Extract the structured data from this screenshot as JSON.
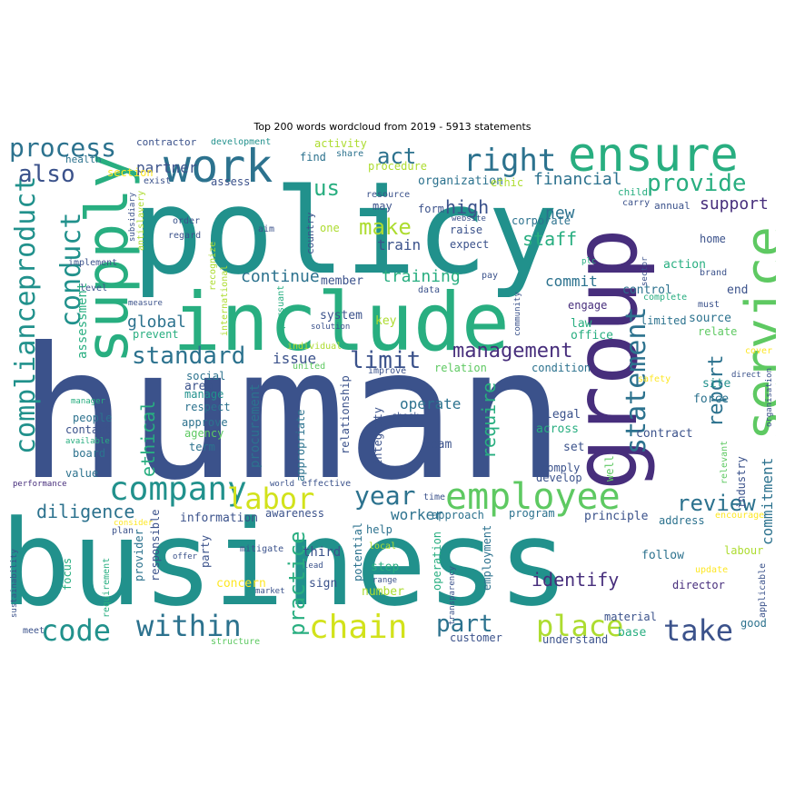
{
  "title": "Top 200 words wordcloud from 2019 - 5913 statements",
  "palette": [
    "#440154",
    "#472e7c",
    "#3b528b",
    "#2c728e",
    "#21918c",
    "#28ae80",
    "#5ec962",
    "#addc30",
    "#fde725"
  ],
  "words": [
    {
      "text": "human",
      "color": "#3b528b"
    },
    {
      "text": "business",
      "color": "#21918c"
    },
    {
      "text": "policy",
      "color": "#21918c"
    },
    {
      "text": "include",
      "color": "#28ae80"
    },
    {
      "text": "group",
      "color": "#472e7c"
    },
    {
      "text": "service",
      "color": "#5ec962"
    },
    {
      "text": "supply",
      "color": "#28ae80"
    },
    {
      "text": "ensure",
      "color": "#28ae80"
    },
    {
      "text": "work",
      "color": "#2c728e"
    },
    {
      "text": "employee",
      "color": "#5ec962"
    },
    {
      "text": "company",
      "color": "#21918c"
    },
    {
      "text": "compliance",
      "color": "#21918c"
    },
    {
      "text": "product",
      "color": "#21918c"
    },
    {
      "text": "chain",
      "color": "#d2e21b"
    },
    {
      "text": "labor",
      "color": "#d2e21b"
    },
    {
      "text": "code",
      "color": "#21918c"
    },
    {
      "text": "within",
      "color": "#2c728e"
    },
    {
      "text": "take",
      "color": "#3b528b"
    },
    {
      "text": "statement",
      "color": "#2c728e"
    },
    {
      "text": "conduct",
      "color": "#21918c"
    },
    {
      "text": "process",
      "color": "#2c728e"
    },
    {
      "text": "right",
      "color": "#2c728e"
    },
    {
      "text": "practice",
      "color": "#28ae80"
    },
    {
      "text": "place",
      "color": "#addc30"
    },
    {
      "text": "part",
      "color": "#2c728e"
    },
    {
      "text": "year",
      "color": "#2c728e"
    },
    {
      "text": "also",
      "color": "#3b528b"
    },
    {
      "text": "provide",
      "color": "#28ae80"
    },
    {
      "text": "standard",
      "color": "#2c728e"
    },
    {
      "text": "management",
      "color": "#472e7c"
    },
    {
      "text": "review",
      "color": "#2c728e"
    },
    {
      "text": "report",
      "color": "#2c728e"
    },
    {
      "text": "act",
      "color": "#2c728e"
    },
    {
      "text": "us",
      "color": "#28ae80"
    },
    {
      "text": "make",
      "color": "#addc30"
    },
    {
      "text": "limit",
      "color": "#3b528b"
    },
    {
      "text": "ethical",
      "color": "#28ae80"
    },
    {
      "text": "require",
      "color": "#28ae80"
    },
    {
      "text": "commitment",
      "color": "#2c728e"
    },
    {
      "text": "diligence",
      "color": "#2c728e"
    },
    {
      "text": "identify",
      "color": "#472e7c"
    },
    {
      "text": "financial",
      "color": "#2c728e"
    },
    {
      "text": "staff",
      "color": "#28ae80"
    },
    {
      "text": "high",
      "color": "#3b528b"
    },
    {
      "text": "new",
      "color": "#2c728e"
    },
    {
      "text": "support",
      "color": "#472e7c"
    },
    {
      "text": "training",
      "color": "#28ae80"
    },
    {
      "text": "continue",
      "color": "#2c728e"
    },
    {
      "text": "global",
      "color": "#2c728e"
    },
    {
      "text": "commit",
      "color": "#2c728e"
    },
    {
      "text": "operate",
      "color": "#2c728e"
    },
    {
      "text": "worker",
      "color": "#2c728e"
    },
    {
      "text": "issue",
      "color": "#3b528b"
    },
    {
      "text": "assessment",
      "color": "#28ae80"
    },
    {
      "text": "partner",
      "color": "#3b528b"
    },
    {
      "text": "procurement",
      "color": "#2c728e"
    },
    {
      "text": "train",
      "color": "#3b528b"
    },
    {
      "text": "action",
      "color": "#28ae80"
    },
    {
      "text": "control",
      "color": "#2c728e"
    },
    {
      "text": "end",
      "color": "#3b528b"
    },
    {
      "text": "source",
      "color": "#2c728e"
    },
    {
      "text": "force",
      "color": "#2c728e"
    },
    {
      "text": "site",
      "color": "#21918c"
    },
    {
      "text": "relate",
      "color": "#5ec962"
    },
    {
      "text": "limited",
      "color": "#2c728e"
    },
    {
      "text": "law",
      "color": "#28ae80"
    },
    {
      "text": "office",
      "color": "#28ae80"
    },
    {
      "text": "engage",
      "color": "#472e7c"
    },
    {
      "text": "system",
      "color": "#3b528b"
    },
    {
      "text": "key",
      "color": "#addc30"
    },
    {
      "text": "member",
      "color": "#3b528b"
    },
    {
      "text": "prevent",
      "color": "#28ae80"
    },
    {
      "text": "area",
      "color": "#3b528b"
    },
    {
      "text": "manage",
      "color": "#21918c"
    },
    {
      "text": "respect",
      "color": "#2c728e"
    },
    {
      "text": "approve",
      "color": "#2c728e"
    },
    {
      "text": "agency",
      "color": "#5ec962"
    },
    {
      "text": "term",
      "color": "#2c728e"
    },
    {
      "text": "people",
      "color": "#2c728e"
    },
    {
      "text": "contact",
      "color": "#3b528b"
    },
    {
      "text": "board",
      "color": "#2c728e"
    },
    {
      "text": "value",
      "color": "#2c728e"
    },
    {
      "text": "social",
      "color": "#2c728e"
    },
    {
      "text": "condition",
      "color": "#2c728e"
    },
    {
      "text": "relation",
      "color": "#5ec962"
    },
    {
      "text": "legal",
      "color": "#3b528b"
    },
    {
      "text": "across",
      "color": "#28ae80"
    },
    {
      "text": "set",
      "color": "#3b528b"
    },
    {
      "text": "comply",
      "color": "#3b528b"
    },
    {
      "text": "develop",
      "color": "#3b528b"
    },
    {
      "text": "contract",
      "color": "#3b528b"
    },
    {
      "text": "team",
      "color": "#3b528b"
    },
    {
      "text": "principle",
      "color": "#3b528b"
    },
    {
      "text": "address",
      "color": "#2c728e"
    },
    {
      "text": "program",
      "color": "#2c728e"
    },
    {
      "text": "approach",
      "color": "#2c728e"
    },
    {
      "text": "information",
      "color": "#3b528b"
    },
    {
      "text": "awareness",
      "color": "#3b528b"
    },
    {
      "text": "help",
      "color": "#2c728e"
    },
    {
      "text": "follow",
      "color": "#2c728e"
    },
    {
      "text": "director",
      "color": "#472e7c"
    },
    {
      "text": "labour",
      "color": "#addc30"
    },
    {
      "text": "third",
      "color": "#3b528b"
    },
    {
      "text": "step",
      "color": "#28ae80"
    },
    {
      "text": "number",
      "color": "#addc30"
    },
    {
      "text": "sign",
      "color": "#3b528b"
    },
    {
      "text": "concern",
      "color": "#fde725"
    },
    {
      "text": "party",
      "color": "#3b528b"
    },
    {
      "text": "focus",
      "color": "#28ae80"
    },
    {
      "text": "provider",
      "color": "#2c728e"
    },
    {
      "text": "responsible",
      "color": "#3b528b"
    },
    {
      "text": "requirement",
      "color": "#28ae80"
    },
    {
      "text": "operation",
      "color": "#28ae80"
    },
    {
      "text": "employment",
      "color": "#2c728e"
    },
    {
      "text": "potential",
      "color": "#2c728e"
    },
    {
      "text": "customer",
      "color": "#3b528b"
    },
    {
      "text": "understand",
      "color": "#3b528b"
    },
    {
      "text": "material",
      "color": "#3b528b"
    },
    {
      "text": "base",
      "color": "#28ae80"
    },
    {
      "text": "good",
      "color": "#2c728e"
    },
    {
      "text": "industry",
      "color": "#3b528b"
    },
    {
      "text": "organization",
      "color": "#2c728e"
    },
    {
      "text": "corporate",
      "color": "#2c728e"
    },
    {
      "text": "procedure",
      "color": "#addc30"
    },
    {
      "text": "activity",
      "color": "#addc30"
    },
    {
      "text": "find",
      "color": "#2c728e"
    },
    {
      "text": "share",
      "color": "#2c728e"
    },
    {
      "text": "assess",
      "color": "#3b528b"
    },
    {
      "text": "section",
      "color": "#fde725"
    },
    {
      "text": "exist",
      "color": "#3b528b"
    },
    {
      "text": "health",
      "color": "#2c728e"
    },
    {
      "text": "contractor",
      "color": "#3b528b"
    },
    {
      "text": "development",
      "color": "#21918c"
    },
    {
      "text": "ethic",
      "color": "#addc30"
    },
    {
      "text": "child",
      "color": "#28ae80"
    },
    {
      "text": "carry",
      "color": "#3b528b"
    },
    {
      "text": "annual",
      "color": "#3b528b"
    },
    {
      "text": "resource",
      "color": "#3b528b"
    },
    {
      "text": "form",
      "color": "#3b528b"
    },
    {
      "text": "may",
      "color": "#3b528b"
    },
    {
      "text": "raise",
      "color": "#3b528b"
    },
    {
      "text": "expect",
      "color": "#3b528b"
    },
    {
      "text": "website",
      "color": "#3b528b"
    },
    {
      "text": "country",
      "color": "#3b528b"
    },
    {
      "text": "one",
      "color": "#addc30"
    },
    {
      "text": "home",
      "color": "#3b528b"
    },
    {
      "text": "brand",
      "color": "#3b528b"
    },
    {
      "text": "plc",
      "color": "#28ae80"
    },
    {
      "text": "complete",
      "color": "#28ae80"
    },
    {
      "text": "must",
      "color": "#3b528b"
    },
    {
      "text": "data",
      "color": "#3b528b"
    },
    {
      "text": "pay",
      "color": "#3b528b"
    },
    {
      "text": "community",
      "color": "#3b528b"
    },
    {
      "text": "pursuant",
      "color": "#28ae80"
    },
    {
      "text": "solution",
      "color": "#3b528b"
    },
    {
      "text": "individual",
      "color": "#addc30"
    },
    {
      "text": "united",
      "color": "#5ec962"
    },
    {
      "text": "improve",
      "color": "#3b528b"
    },
    {
      "text": "recognize",
      "color": "#addc30"
    },
    {
      "text": "international",
      "color": "#addc30"
    },
    {
      "text": "antislavery",
      "color": "#addc30"
    },
    {
      "text": "subsidiary",
      "color": "#3b528b"
    },
    {
      "text": "implement",
      "color": "#3b528b"
    },
    {
      "text": "level",
      "color": "#3b528b"
    },
    {
      "text": "measure",
      "color": "#3b528b"
    },
    {
      "text": "order",
      "color": "#3b528b"
    },
    {
      "text": "regard",
      "color": "#3b528b"
    },
    {
      "text": "aim",
      "color": "#3b528b"
    },
    {
      "text": "manager",
      "color": "#28ae80"
    },
    {
      "text": "available",
      "color": "#28ae80"
    },
    {
      "text": "performance",
      "color": "#472e7c"
    },
    {
      "text": "consider",
      "color": "#fde725"
    },
    {
      "text": "plan",
      "color": "#3b528b"
    },
    {
      "text": "world",
      "color": "#3b528b"
    },
    {
      "text": "effective",
      "color": "#3b528b"
    },
    {
      "text": "time",
      "color": "#3b528b"
    },
    {
      "text": "appropriate",
      "color": "#2c728e"
    },
    {
      "text": "relationship",
      "color": "#3b528b"
    },
    {
      "text": "integrity",
      "color": "#3b528b"
    },
    {
      "text": "check",
      "color": "#3b528b"
    },
    {
      "text": "well",
      "color": "#5ec962"
    },
    {
      "text": "relevant",
      "color": "#5ec962"
    },
    {
      "text": "safety",
      "color": "#fde725"
    },
    {
      "text": "direct",
      "color": "#3b528b"
    },
    {
      "text": "organisation",
      "color": "#3b528b"
    },
    {
      "text": "cover",
      "color": "#fde725"
    },
    {
      "text": "encourage",
      "color": "#fde725"
    },
    {
      "text": "applicable",
      "color": "#3b528b"
    },
    {
      "text": "update",
      "color": "#fde725"
    },
    {
      "text": "sector",
      "color": "#3b528b"
    },
    {
      "text": "mitigate",
      "color": "#3b528b"
    },
    {
      "text": "lead",
      "color": "#3b528b"
    },
    {
      "text": "local",
      "color": "#addc30"
    },
    {
      "text": "range",
      "color": "#3b528b"
    },
    {
      "text": "transparency",
      "color": "#3b528b"
    },
    {
      "text": "market",
      "color": "#3b528b"
    },
    {
      "text": "meet",
      "color": "#3b528b"
    },
    {
      "text": "structure",
      "color": "#5ec962"
    },
    {
      "text": "offer",
      "color": "#3b528b"
    },
    {
      "text": "sustainability",
      "color": "#3b528b"
    }
  ]
}
